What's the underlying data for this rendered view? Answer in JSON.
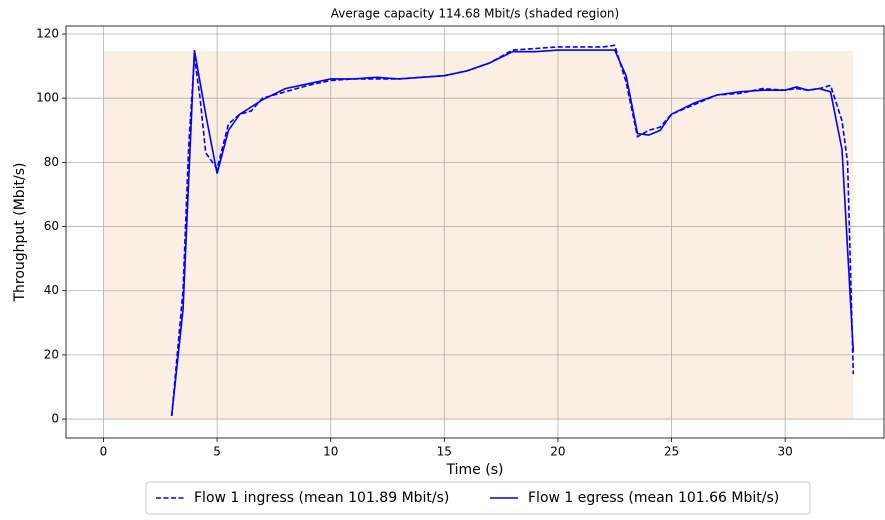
{
  "chart_data": {
    "type": "line",
    "title": "Average capacity 114.68 Mbit/s (shaded region)",
    "x_label": "Time (s)",
    "y_label": "Throughput (Mbit/s)",
    "xlim": [
      -1.65,
      34.35
    ],
    "ylim": [
      -5.9,
      122.5
    ],
    "xticks": [
      0,
      5,
      10,
      15,
      20,
      25,
      30
    ],
    "yticks": [
      0,
      20,
      40,
      60,
      80,
      100,
      120
    ],
    "grid": true,
    "legend": "below",
    "shaded": {
      "x": [
        0,
        33
      ],
      "value": 114.68,
      "color": "#fbeee3"
    },
    "series": [
      {
        "name": "Flow 1 ingress (mean 101.89 Mbit/s)",
        "color": "#0000ff",
        "dash": true,
        "x": [
          3.0,
          3.5,
          3.75,
          4.0,
          4.25,
          4.5,
          5.0,
          5.5,
          6.0,
          6.5,
          7,
          8,
          9,
          10,
          11,
          12,
          13,
          14,
          15,
          16,
          17,
          18,
          19,
          20,
          21,
          22,
          22.5,
          23,
          23.5,
          24,
          24.5,
          25,
          26,
          27,
          28,
          29,
          30,
          30.5,
          31,
          31.5,
          32,
          32.5,
          32.75,
          33
        ],
        "values": [
          1,
          40,
          85,
          113,
          100,
          83,
          78,
          92,
          95,
          96,
          100,
          102,
          104,
          105.5,
          106,
          106,
          106,
          106.5,
          107,
          108.5,
          111,
          115,
          115.5,
          116,
          116,
          116,
          116.5,
          105,
          88,
          90,
          91,
          95,
          98,
          101,
          101.5,
          103,
          102.5,
          103,
          102.5,
          103,
          104,
          93,
          80,
          14
        ]
      },
      {
        "name": "Flow 1 egress (mean 101.66 Mbit/s)",
        "color": "#0000ff",
        "dash": false,
        "x": [
          3.0,
          3.5,
          4.0,
          4.5,
          5.0,
          5.5,
          6.0,
          7,
          8,
          9,
          10,
          11,
          12,
          13,
          14,
          15,
          16,
          17,
          18,
          19,
          20,
          21,
          22,
          22.5,
          23,
          23.5,
          24,
          24.5,
          25,
          26,
          27,
          28,
          29,
          30,
          30.5,
          31,
          31.5,
          32,
          32.5,
          33
        ],
        "values": [
          1,
          34,
          115,
          95,
          76.5,
          90,
          95,
          99.5,
          103,
          104.5,
          106,
          106,
          106.5,
          106,
          106.5,
          107,
          108.5,
          111,
          114.5,
          114.5,
          115,
          115,
          115,
          115,
          107,
          89,
          88.5,
          90,
          95,
          98.5,
          101,
          102,
          102.5,
          102.5,
          103.5,
          102.5,
          103,
          102,
          84,
          21
        ]
      }
    ]
  }
}
